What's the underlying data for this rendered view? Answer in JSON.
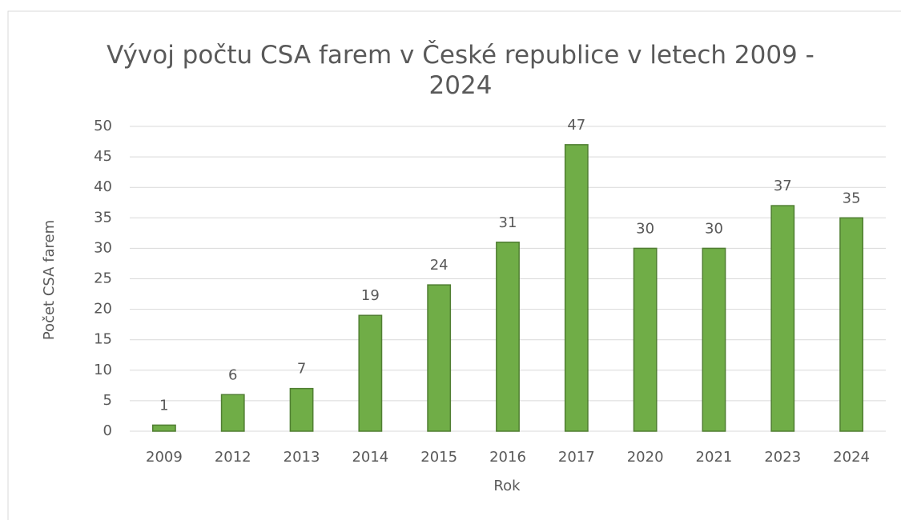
{
  "chart_data": {
    "type": "bar",
    "title": "Vývoj počtu CSA farem v České republice v letech 2009 - 2024",
    "x_label": "Rok",
    "y_label": "Počet CSA farem",
    "categories": [
      "2009",
      "2012",
      "2013",
      "2014",
      "2015",
      "2016",
      "2017",
      "2020",
      "2021",
      "2023",
      "2024"
    ],
    "values": [
      1,
      6,
      7,
      19,
      24,
      31,
      47,
      30,
      30,
      37,
      35
    ],
    "color": "#70ad47",
    "ylim": [
      0,
      50
    ],
    "yticks": [
      0,
      5,
      10,
      15,
      20,
      25,
      30,
      35,
      40,
      45,
      50
    ],
    "grid": true
  }
}
